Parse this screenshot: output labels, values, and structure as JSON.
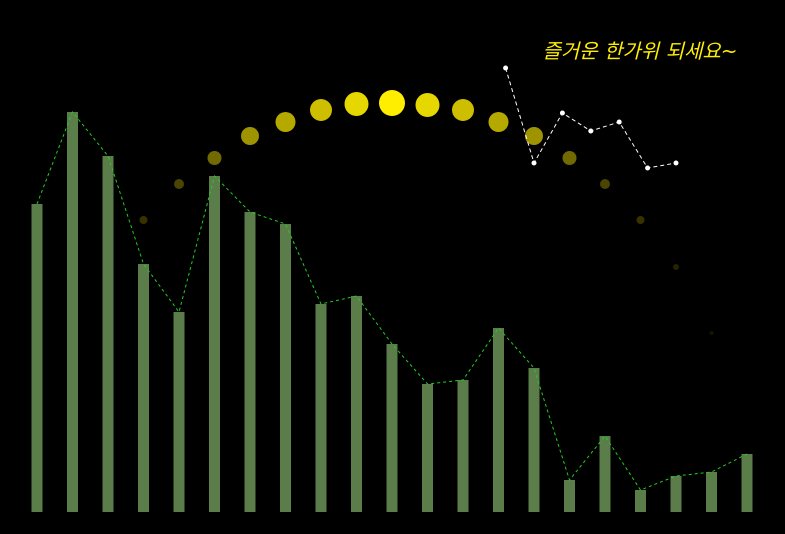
{
  "chart_data": {
    "type": "bar",
    "title": "즐거운 한가위 되세요~",
    "title_color": "#ffee00",
    "ylim": [
      0,
      112
    ],
    "xlim": [
      -0.5,
      20.5
    ],
    "series": [
      {
        "type": "bar",
        "color": "#5a7d4a",
        "line_color": "#22cc22",
        "values": [
          77,
          100,
          89,
          62,
          50,
          84,
          75,
          72,
          52,
          54,
          42,
          32,
          33,
          46,
          36,
          8,
          19,
          5.5,
          9,
          10,
          14.5
        ]
      },
      {
        "type": "scatter",
        "color": "#ffee00",
        "values": [
          null,
          null,
          null,
          73,
          82,
          88.5,
          94,
          97.5,
          100.5,
          102,
          102.25,
          101.75,
          100.5,
          97.5,
          94,
          88.5,
          82,
          73,
          61.25,
          44.75,
          null
        ],
        "sizes": [
          null,
          null,
          null,
          4,
          5,
          7,
          9,
          10,
          11,
          12,
          13,
          12,
          11,
          10,
          9,
          7,
          5,
          4,
          3,
          2,
          null
        ]
      },
      {
        "type": "line",
        "color": "#ffffff",
        "x": [
          13.2,
          14.0,
          14.8,
          15.6,
          16.4,
          17.2,
          18.0
        ],
        "values": [
          111,
          87.25,
          99.75,
          95.25,
          97.5,
          86,
          87.25
        ]
      }
    ]
  }
}
